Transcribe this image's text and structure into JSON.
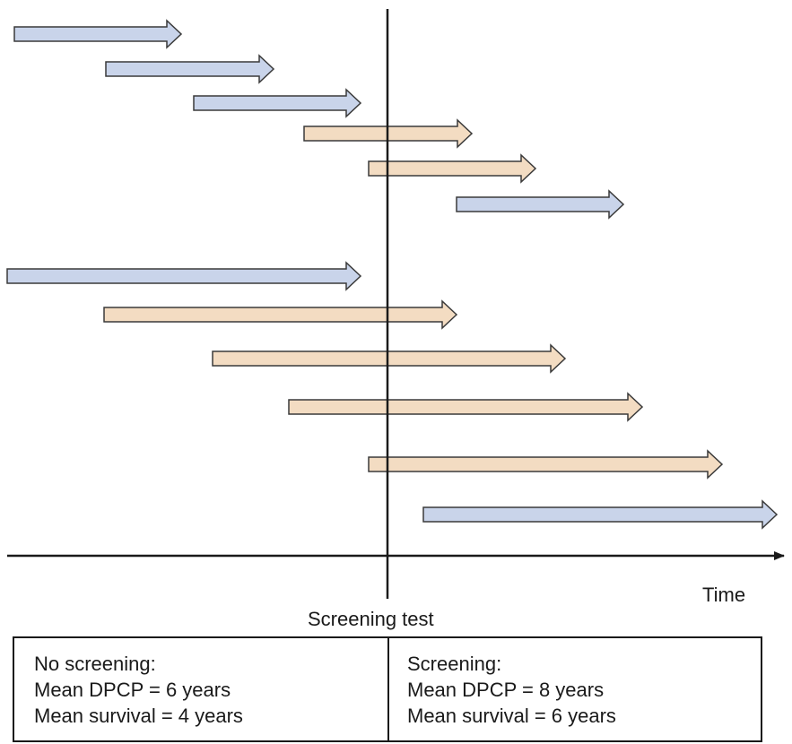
{
  "axis": {
    "time_label": "Time",
    "screening_label": "Screening test"
  },
  "arrows": [
    {
      "type": "not_detected"
    },
    {
      "type": "not_detected"
    },
    {
      "type": "not_detected"
    },
    {
      "type": "detected"
    },
    {
      "type": "detected"
    },
    {
      "type": "not_detected"
    },
    {
      "type": "not_detected"
    },
    {
      "type": "detected"
    },
    {
      "type": "detected"
    },
    {
      "type": "detected"
    },
    {
      "type": "detected"
    },
    {
      "type": "not_detected"
    }
  ],
  "colors": {
    "not_detected": "#c9d4ea",
    "detected": "#f3dcc2",
    "outline": "#3a3a3a",
    "axis": "#1a1a1a"
  },
  "summary": {
    "no_screening": {
      "title": "No screening:",
      "dpcp": "Mean DPCP = 6 years",
      "survival": "Mean survival = 4 years"
    },
    "screening": {
      "title": "Screening:",
      "dpcp": "Mean DPCP = 8 years",
      "survival": "Mean survival = 6 years"
    }
  }
}
